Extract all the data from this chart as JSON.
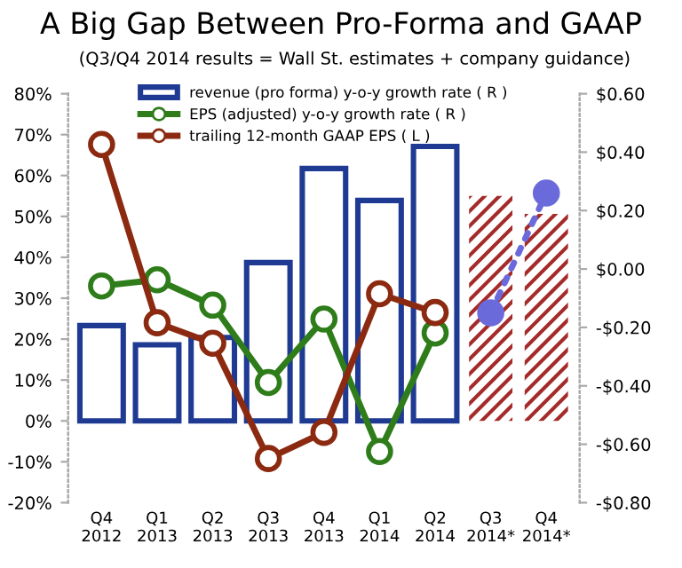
{
  "chart_data": {
    "type": "bar",
    "title": "A Big Gap Between Pro-Forma and GAAP",
    "subtitle": "(Q3/Q4 2014 results = Wall St. estimates + company guidance)",
    "categories": [
      "Q4\n2012",
      "Q1\n2013",
      "Q2\n2013",
      "Q3\n2013",
      "Q4\n2013",
      "Q1\n2014",
      "Q2\n2014",
      "Q3\n2014*",
      "Q4\n2014*"
    ],
    "series": [
      {
        "name": "revenue (pro forma) y-o-y growth rate ( R )",
        "color": "#1f3a93",
        "values": [
          23.3,
          18.6,
          20.4,
          38.7,
          61.7,
          53.9,
          67.1,
          null,
          null
        ]
      },
      {
        "color": "#a52a2a",
        "values": [
          null,
          null,
          null,
          null,
          null,
          null,
          null,
          55,
          50.6
        ]
      },
      {
        "name": "EPS (adjusted) y-o-y growth rate ( R )",
        "type": "line",
        "color": "#2e7d1a",
        "marker": "circle",
        "line_style": "solid",
        "values": [
          33,
          34.5,
          28.3,
          9.4,
          24.9,
          -7.5,
          21.5,
          null,
          null
        ]
      },
      {
        "name": "trailing 12-month GAAP EPS ( L )",
        "type": "line",
        "color": "#8b2a10",
        "marker": "circle",
        "line_style": "solid",
        "values": [
          67.6,
          24,
          19,
          -9.2,
          -2.8,
          31.1,
          26.5,
          null,
          null
        ]
      },
      {
        "type": "line",
        "axis": "y2",
        "color": "#6a6adb",
        "marker": "circle",
        "line_style": "dotted",
        "values": [
          null,
          null,
          null,
          null,
          null,
          null,
          null,
          -0.15,
          0.26
        ]
      }
    ],
    "ylim": [
      -20,
      80
    ],
    "yticks": [
      {
        "value": -20,
        "label": "-20%"
      },
      {
        "value": -10,
        "label": "-10%"
      },
      {
        "value": 0,
        "label": "0%"
      },
      {
        "value": 10,
        "label": "10%"
      },
      {
        "value": 20,
        "label": "20%"
      },
      {
        "value": 30,
        "label": "30%"
      },
      {
        "value": 40,
        "label": "40%"
      },
      {
        "value": 50,
        "label": "50%"
      },
      {
        "value": 60,
        "label": "60%"
      },
      {
        "value": 70,
        "label": "70%"
      },
      {
        "value": 80,
        "label": "80%"
      }
    ],
    "y2lim": [
      -0.8,
      0.6
    ],
    "y2ticks": [
      {
        "value": -0.8,
        "label": "-$0.80"
      },
      {
        "value": -0.6,
        "label": "-$0.60"
      },
      {
        "value": -0.4,
        "label": "-$0.40"
      },
      {
        "value": -0.2,
        "label": "-$0.20"
      },
      {
        "value": 0,
        "label": "$0.00"
      },
      {
        "value": 0.2,
        "label": "$0.20"
      },
      {
        "value": 0.4,
        "label": "$0.40"
      },
      {
        "value": 0.6,
        "label": "$0.60"
      }
    ],
    "legend": "top",
    "grid": false
  }
}
